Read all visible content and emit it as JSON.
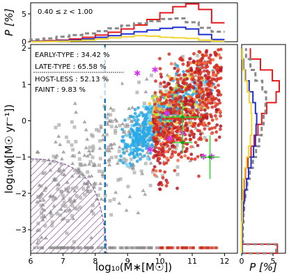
{
  "chart_data": {
    "type": "scatter",
    "main": {
      "xlabel": "log$_{10}$(M$_*$[M$_\\odot$])",
      "ylabel": "log$_{10}$(ϕ[M$_\\odot$ yr$^{-1}$])",
      "xlabel_text": "log₁₀(M∗[M☉])",
      "ylabel_text": "log₁₀(ϕ[M☉ yr⁻¹])",
      "xlim": [
        6,
        12.4
      ],
      "ylim": [
        -3.65,
        2.1
      ],
      "xticks": [
        6,
        7,
        8,
        9,
        10,
        11,
        12
      ],
      "yticks": [
        -3,
        -2,
        -1,
        0,
        1,
        2
      ],
      "grid": false,
      "vline_x": 8.3,
      "hatch_region_note": "hatched incompleteness region at low mass",
      "legend_text": [
        {
          "label": "EARLY-TYPE",
          "value": "34.42",
          "unit": "%"
        },
        {
          "label": "LATE-TYPE",
          "value": "65.58",
          "unit": "%"
        },
        {
          "label": "HOST-LESS",
          "value": "52.13",
          "unit": "%"
        },
        {
          "label": "FAINT",
          "value": "9.83",
          "unit": "%"
        }
      ],
      "legend_text_display": [
        "EARLY-TYPE : 34.42  %",
        "LATE-TYPE   : 65.58  %",
        "HOST-LESS  : 52.13  %",
        "FAINT        :  9.83  %"
      ],
      "series": [
        {
          "role": "faint/host-less",
          "color": "#8c8c8c",
          "marker": "triangle/square"
        },
        {
          "role": "late-type",
          "color": "#29a9e6",
          "marker": "circle"
        },
        {
          "role": "early-type",
          "color": "#d7301f",
          "marker": "circle"
        },
        {
          "role": "highlight",
          "color": "#d633f2",
          "marker": "star"
        }
      ],
      "error_points": [
        {
          "x": 10.7,
          "y": 0.1,
          "xerr": 0.6,
          "yerr": 0.4
        },
        {
          "x": 10.7,
          "y": -0.6,
          "xerr": 0.3,
          "yerr": 0.3
        },
        {
          "x": 11.55,
          "y": -1.0,
          "xerr": 0.3,
          "yerr": 0.6
        }
      ]
    },
    "top_hist": {
      "ylabel": "P [%]",
      "ylim": [
        0,
        7
      ],
      "yticks": [
        0,
        5
      ],
      "annotation": "0.40 ≤ z < 1.00",
      "bins": [
        6.0,
        6.4,
        6.8,
        7.2,
        7.6,
        8.0,
        8.4,
        8.8,
        9.2,
        9.6,
        10.0,
        10.4,
        10.8,
        11.2,
        11.6,
        12.0
      ],
      "series": [
        {
          "color": "#e41a1c",
          "style": "step",
          "values": [
            0.1,
            0.2,
            0.3,
            0.5,
            0.8,
            1.2,
            1.7,
            2.3,
            3.0,
            4.0,
            5.2,
            6.3,
            6.8,
            5.8,
            3.4
          ]
        },
        {
          "color": "#888888",
          "style": "dash",
          "values": [
            0.4,
            0.6,
            0.9,
            1.2,
            1.5,
            1.9,
            2.4,
            2.9,
            3.3,
            3.7,
            4.1,
            4.2,
            3.5,
            2.5,
            1.8
          ]
        },
        {
          "color": "#1f2fcf",
          "style": "step",
          "values": [
            0.05,
            0.1,
            0.2,
            0.3,
            0.5,
            0.8,
            1.1,
            1.4,
            1.8,
            2.1,
            2.4,
            2.6,
            2.3,
            1.3,
            0.4
          ]
        },
        {
          "color": "#f2d52c",
          "style": "step",
          "values": [
            0.0,
            0.05,
            0.1,
            0.15,
            0.3,
            0.5,
            0.7,
            0.9,
            1.1,
            1.0,
            0.8,
            0.7,
            0.6,
            0.3,
            0.1
          ]
        }
      ]
    },
    "right_hist": {
      "xlabel": "P [%]",
      "xlim": [
        0,
        7
      ],
      "xticks": [
        0,
        5
      ],
      "bins": [
        -3.65,
        -3.4,
        -3.1,
        -2.8,
        -2.5,
        -2.2,
        -1.9,
        -1.6,
        -1.3,
        -1.0,
        -0.7,
        -0.4,
        -0.1,
        0.2,
        0.5,
        0.8,
        1.1,
        1.4,
        1.7,
        2.0
      ],
      "series": [
        {
          "color": "#e41a1c",
          "style": "step",
          "values": [
            5.7,
            0.1,
            0.1,
            0.2,
            0.2,
            0.3,
            0.4,
            0.6,
            1.0,
            1.5,
            2.0,
            2.6,
            3.2,
            4.0,
            5.5,
            6.0,
            4.9,
            3.0,
            1.4
          ]
        },
        {
          "color": "#888888",
          "style": "dash",
          "values": [
            5.5,
            0.2,
            0.2,
            0.3,
            0.4,
            0.6,
            0.9,
            1.3,
            1.8,
            2.3,
            2.8,
            3.2,
            3.5,
            3.8,
            3.9,
            3.3,
            2.2,
            1.4,
            0.7
          ]
        },
        {
          "color": "#1f2fcf",
          "style": "step",
          "values": [
            0.1,
            0.1,
            0.1,
            0.2,
            0.3,
            0.5,
            0.8,
            1.1,
            1.5,
            1.9,
            2.2,
            2.3,
            2.4,
            2.2,
            1.8,
            1.2,
            0.6,
            0.3,
            0.1
          ]
        },
        {
          "color": "#f2d52c",
          "style": "step",
          "values": [
            0.0,
            0.0,
            0.0,
            0.1,
            0.1,
            0.2,
            0.3,
            0.5,
            0.8,
            1.1,
            1.4,
            1.6,
            1.6,
            1.5,
            1.2,
            0.9,
            0.5,
            0.2,
            0.1
          ]
        }
      ]
    }
  }
}
